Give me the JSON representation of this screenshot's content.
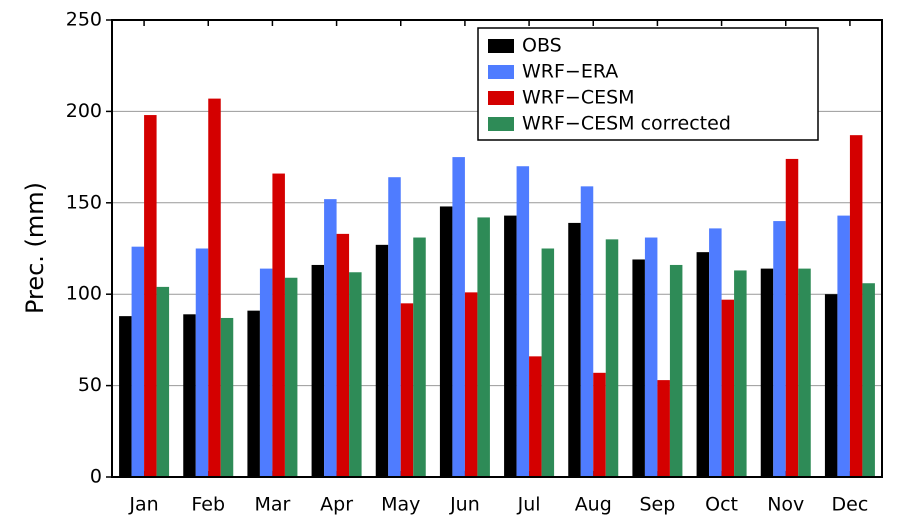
{
  "chart_data": {
    "type": "bar",
    "ylabel": "Prec. (mm)",
    "categories": [
      "Jan",
      "Feb",
      "Mar",
      "Apr",
      "May",
      "Jun",
      "Jul",
      "Aug",
      "Sep",
      "Oct",
      "Nov",
      "Dec"
    ],
    "series": [
      {
        "name": "OBS",
        "color": "#000000",
        "values": [
          88,
          89,
          91,
          116,
          127,
          148,
          143,
          139,
          119,
          123,
          114,
          100
        ]
      },
      {
        "name": "WRF−ERA",
        "color": "#4f7cff",
        "values": [
          126,
          125,
          114,
          152,
          164,
          175,
          170,
          159,
          131,
          136,
          140,
          143
        ]
      },
      {
        "name": "WRF−CESM",
        "color": "#d40000",
        "values": [
          198,
          207,
          166,
          133,
          95,
          101,
          66,
          57,
          53,
          97,
          174,
          187
        ]
      },
      {
        "name": "WRF−CESM corrected",
        "color": "#2e8b57",
        "values": [
          104,
          87,
          109,
          112,
          131,
          142,
          125,
          130,
          116,
          113,
          114,
          106
        ]
      }
    ],
    "ylim": [
      0,
      250
    ],
    "yticks": [
      0,
      50,
      100,
      150,
      200,
      250
    ],
    "grid": true
  }
}
